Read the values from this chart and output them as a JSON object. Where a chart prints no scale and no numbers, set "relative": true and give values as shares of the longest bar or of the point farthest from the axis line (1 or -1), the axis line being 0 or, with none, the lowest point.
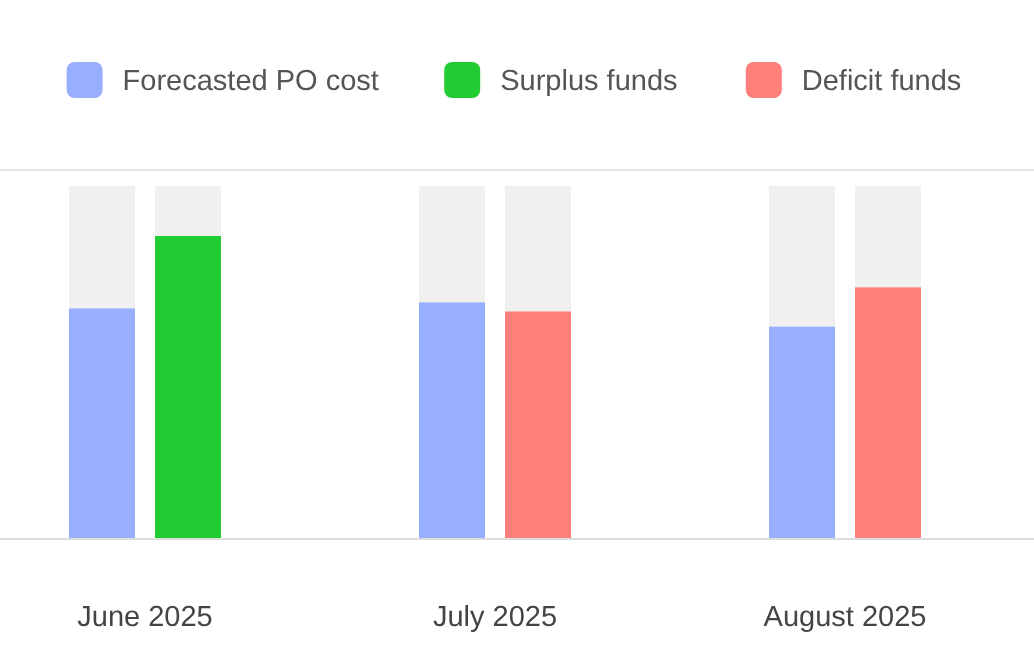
{
  "chart_data": {
    "type": "bar",
    "relative": true,
    "legend": "top",
    "categories": [
      "June 2025",
      "July 2025",
      "August 2025"
    ],
    "series": [
      {
        "name": "Forecasted PO cost",
        "color": "#98aefe",
        "values": [
          0.76,
          0.78,
          0.7
        ]
      },
      {
        "name": "Surplus funds",
        "color": "#22cc33",
        "values": [
          1,
          null,
          null
        ]
      },
      {
        "name": "Deficit funds",
        "color": "#ff7f7a",
        "values": [
          null,
          0.75,
          0.83
        ]
      }
    ]
  }
}
